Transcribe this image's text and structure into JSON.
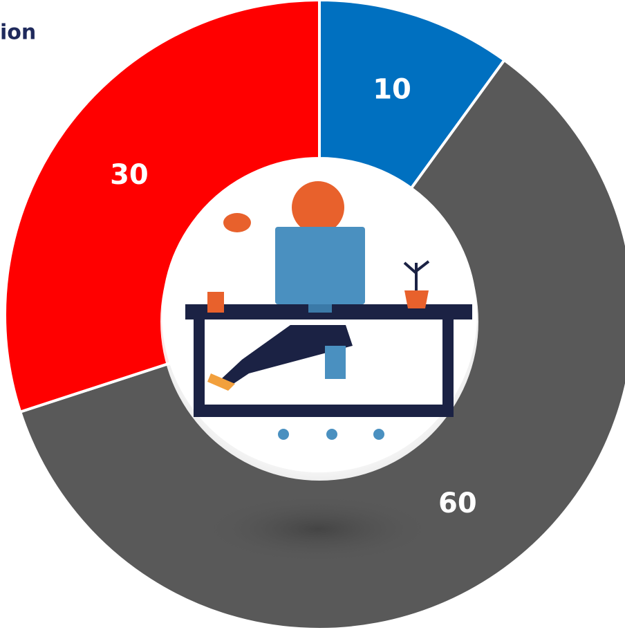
{
  "chart_data": {
    "type": "donut",
    "title": "ion",
    "categories": [
      null,
      null,
      null
    ],
    "values": [
      10,
      60,
      30
    ],
    "colors": [
      "#0070c0",
      "#595959",
      "#ff0000"
    ],
    "label_color": "#ffffff"
  }
}
